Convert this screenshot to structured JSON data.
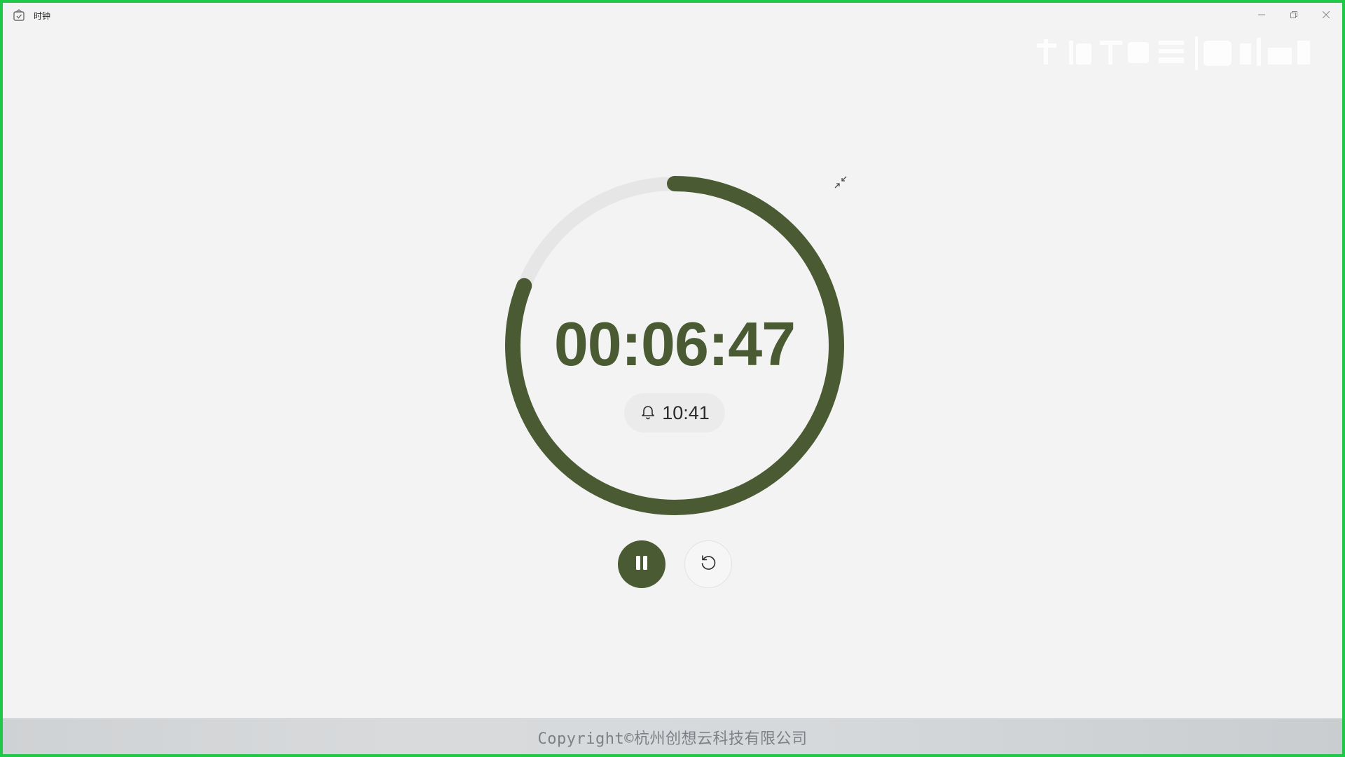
{
  "window": {
    "title": "时钟",
    "app_icon": "clock-app-icon",
    "buttons": {
      "minimize_icon": "minimize-icon",
      "maximize_icon": "restore-icon",
      "close_icon": "close-icon"
    }
  },
  "timer": {
    "remaining": "00:06:47",
    "alarm_time": "10:41",
    "alarm_icon": "bell-icon",
    "progress_remaining_fraction": 0.81,
    "compact_icon": "collapse-icon",
    "pause_icon": "pause-icon",
    "reset_icon": "reset-icon"
  },
  "footer": {
    "copyright": "Copyright©杭州创想云科技有限公司"
  },
  "colors": {
    "accent": "#4a5a32",
    "track": "#e6e6e6",
    "background": "#f3f3f3",
    "frame": "#20c84a"
  }
}
